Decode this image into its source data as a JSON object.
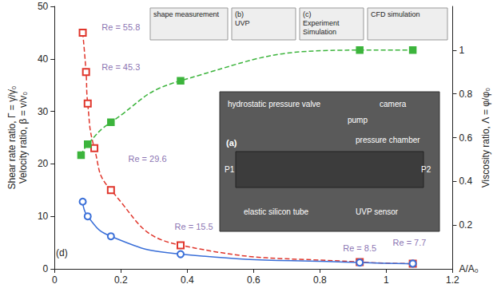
{
  "chart_data": {
    "type": "line",
    "xlabel": "A/A₀",
    "ylabel": [
      "Shear rate ratio, Γ = γ̇/γ̇₀",
      "Velocity ratio, β = v/v₀"
    ],
    "y2label": "Viscosity ratio, Λ = φ/φ₀",
    "xlim": [
      0,
      1.2
    ],
    "xticks": [
      0,
      0.2,
      0.4,
      0.6,
      0.8,
      1,
      1.2
    ],
    "ylim": [
      0,
      50
    ],
    "yticks": [
      0,
      10,
      20,
      30,
      40,
      50
    ],
    "y2lim": [
      0,
      1.2
    ],
    "y2ticks": [
      0.2,
      0.4,
      0.6,
      0.8,
      1
    ],
    "grid": false,
    "series": [
      {
        "color": "#e0362c",
        "marker": "square_open",
        "line_style": "dashed",
        "axis": "y",
        "x": [
          0.085,
          0.095,
          0.1,
          0.12,
          0.17,
          0.38,
          0.92,
          1.08
        ],
        "values": [
          45,
          37.5,
          31.5,
          23,
          15,
          4.5,
          1.3,
          1
        ]
      },
      {
        "color": "#3a6fd8",
        "marker": "circle_open",
        "line_style": "solid",
        "axis": "y",
        "x": [
          0.085,
          0.1,
          0.17,
          0.38,
          0.92,
          1.08
        ],
        "values": [
          12.8,
          10,
          6.2,
          2.8,
          1.2,
          1
        ]
      },
      {
        "color": "#3cb43c",
        "marker": "square",
        "line_style": "dashed",
        "axis": "y2",
        "x": [
          0.08,
          0.1,
          0.17,
          0.38,
          0.92,
          1.08
        ],
        "values": [
          0.52,
          0.57,
          0.67,
          0.86,
          1.0,
          1.0
        ]
      }
    ],
    "annotations": [
      {
        "text": "Re = 55.8",
        "x": 0.2,
        "y": 46
      },
      {
        "text": "Re = 45.3",
        "x": 0.2,
        "y": 38.5
      },
      {
        "text": "Re = 29.6",
        "x": 0.28,
        "y": 21
      },
      {
        "text": "Re = 15.5",
        "x": 0.42,
        "y": 8
      },
      {
        "text": "Re = 8.5",
        "x": 0.92,
        "y": 4
      },
      {
        "text": "Re = 7.7",
        "x": 1.07,
        "y": 5
      }
    ],
    "panel_label": "(d)",
    "insets": [
      {
        "label": "",
        "texts": [
          "shape measurement"
        ]
      },
      {
        "label": "(b)",
        "texts": [
          "UVP"
        ]
      },
      {
        "label": "(c)",
        "texts": [
          "Experiment",
          "Simulation"
        ]
      },
      {
        "label": "",
        "texts": [
          "CFD simulation"
        ]
      },
      {
        "label": "(a)",
        "texts": [
          "hydrostatic pressure valve",
          "camera",
          "pump",
          "pressure chamber",
          "P1",
          "P2",
          "elastic silicon tube",
          "UVP sensor"
        ]
      }
    ]
  }
}
